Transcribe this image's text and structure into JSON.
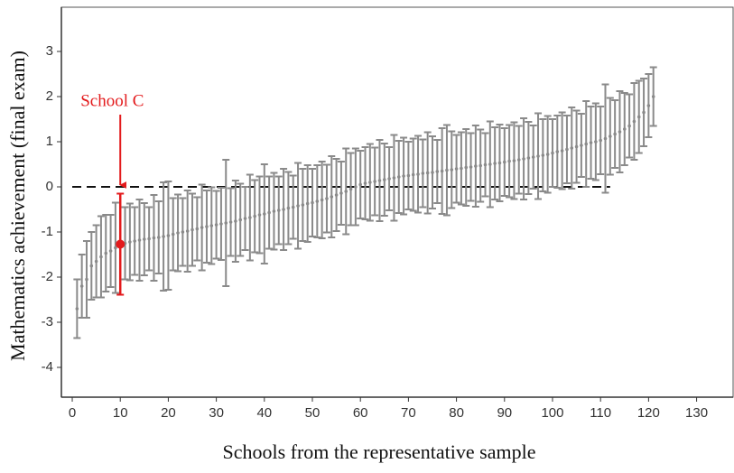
{
  "chart_data": {
    "type": "errorbar",
    "xlabel": "Schools from the representative sample",
    "ylabel": "Mathematics achievement (final exam)",
    "x": [
      1,
      2,
      3,
      4,
      5,
      6,
      7,
      8,
      9,
      10,
      11,
      12,
      13,
      14,
      15,
      16,
      17,
      18,
      19,
      20,
      21,
      22,
      23,
      24,
      25,
      26,
      27,
      28,
      29,
      30,
      31,
      32,
      33,
      34,
      35,
      36,
      37,
      38,
      39,
      40,
      41,
      42,
      43,
      44,
      45,
      46,
      47,
      48,
      49,
      50,
      51,
      52,
      53,
      54,
      55,
      56,
      57,
      58,
      59,
      60,
      61,
      62,
      63,
      64,
      65,
      66,
      67,
      68,
      69,
      70,
      71,
      72,
      73,
      74,
      75,
      76,
      77,
      78,
      79,
      80,
      81,
      82,
      83,
      84,
      85,
      86,
      87,
      88,
      89,
      90,
      91,
      92,
      93,
      94,
      95,
      96,
      97,
      98,
      99,
      100,
      101,
      102,
      103,
      104,
      105,
      106,
      107,
      108,
      109,
      110,
      111,
      112,
      113,
      114,
      115,
      116,
      117,
      118,
      119,
      120,
      121
    ],
    "values": [
      -2.7,
      -2.2,
      -2.05,
      -1.75,
      -1.65,
      -1.55,
      -1.47,
      -1.42,
      -1.35,
      -1.27,
      -1.25,
      -1.22,
      -1.2,
      -1.18,
      -1.16,
      -1.15,
      -1.13,
      -1.12,
      -1.1,
      -1.08,
      -1.05,
      -1.02,
      -1.0,
      -0.98,
      -0.95,
      -0.93,
      -0.9,
      -0.88,
      -0.86,
      -0.84,
      -0.82,
      -0.8,
      -0.78,
      -0.76,
      -0.73,
      -0.7,
      -0.68,
      -0.65,
      -0.62,
      -0.6,
      -0.57,
      -0.54,
      -0.52,
      -0.5,
      -0.47,
      -0.45,
      -0.42,
      -0.4,
      -0.37,
      -0.35,
      -0.32,
      -0.29,
      -0.26,
      -0.22,
      -0.18,
      -0.14,
      -0.1,
      -0.05,
      0.0,
      0.05,
      0.08,
      0.1,
      0.12,
      0.14,
      0.16,
      0.18,
      0.2,
      0.22,
      0.24,
      0.25,
      0.27,
      0.28,
      0.3,
      0.31,
      0.32,
      0.34,
      0.35,
      0.37,
      0.38,
      0.4,
      0.41,
      0.43,
      0.44,
      0.46,
      0.47,
      0.49,
      0.5,
      0.52,
      0.53,
      0.55,
      0.57,
      0.58,
      0.6,
      0.62,
      0.64,
      0.66,
      0.68,
      0.7,
      0.72,
      0.75,
      0.78,
      0.8,
      0.83,
      0.86,
      0.89,
      0.92,
      0.95,
      0.98,
      1.0,
      1.03,
      1.07,
      1.12,
      1.17,
      1.22,
      1.28,
      1.35,
      1.45,
      1.55,
      1.65,
      1.8,
      2.0
    ],
    "errors": [
      0.65,
      0.7,
      0.85,
      0.75,
      0.8,
      0.9,
      0.85,
      0.8,
      1.0,
      1.12,
      0.8,
      0.85,
      0.75,
      0.9,
      0.8,
      0.7,
      0.95,
      0.8,
      1.2,
      1.2,
      0.8,
      0.85,
      0.75,
      0.9,
      0.8,
      0.7,
      0.95,
      0.8,
      0.85,
      0.75,
      0.8,
      1.4,
      0.75,
      0.9,
      0.8,
      0.7,
      0.95,
      0.8,
      0.85,
      1.1,
      0.8,
      0.85,
      0.75,
      0.9,
      0.8,
      0.7,
      0.95,
      0.8,
      0.85,
      0.75,
      0.8,
      0.85,
      0.75,
      0.9,
      0.8,
      0.7,
      0.95,
      0.8,
      0.85,
      0.75,
      0.8,
      0.85,
      0.75,
      0.9,
      0.8,
      0.7,
      0.95,
      0.8,
      0.85,
      0.75,
      0.8,
      0.85,
      0.75,
      0.9,
      0.8,
      0.7,
      0.95,
      1.0,
      0.85,
      0.75,
      0.8,
      0.85,
      0.75,
      0.9,
      0.8,
      0.7,
      0.95,
      0.8,
      0.85,
      0.75,
      0.8,
      0.85,
      0.75,
      0.9,
      0.8,
      0.7,
      0.95,
      0.8,
      0.85,
      0.75,
      0.8,
      0.85,
      0.75,
      0.9,
      0.8,
      0.7,
      0.95,
      0.8,
      0.85,
      0.75,
      1.2,
      0.85,
      0.75,
      0.9,
      0.8,
      0.7,
      0.85,
      0.8,
      0.75,
      0.7,
      0.65
    ],
    "color": "#8a8a8a",
    "highlight": {
      "x": 10,
      "color": "#e31a1c"
    },
    "annotations": [
      {
        "text": "School C",
        "x": 10,
        "y": 0,
        "color": "#e31a1c"
      }
    ],
    "hline": 0,
    "xlim": [
      -2.26,
      137.6
    ],
    "ylim": [
      -4.66,
      3.98
    ],
    "xticks": [
      0,
      10,
      20,
      30,
      40,
      50,
      60,
      70,
      80,
      90,
      100,
      110,
      120,
      130
    ],
    "yticks": [
      -4,
      -3,
      -2,
      -1,
      0,
      1,
      2,
      3
    ]
  }
}
